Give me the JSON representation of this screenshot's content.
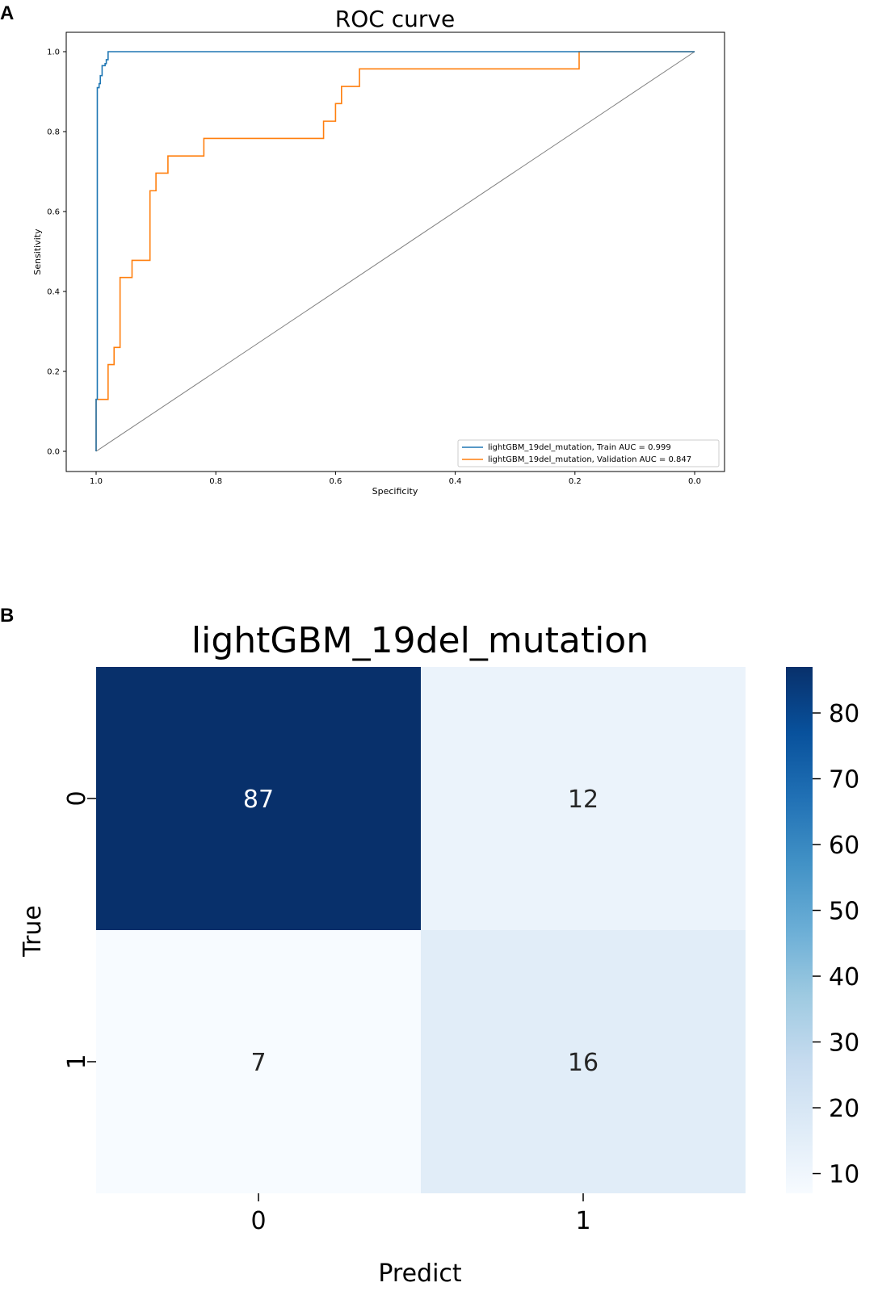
{
  "panels": {
    "a_label": "A",
    "b_label": "B"
  },
  "chart_data": [
    {
      "type": "line",
      "title": "ROC curve",
      "xlabel": "Specificity",
      "ylabel": "Sensitivity",
      "xlim": [
        1.0,
        0.0
      ],
      "ylim": [
        0.0,
        1.0
      ],
      "x_ticks": [
        "1.0",
        "0.8",
        "0.6",
        "0.4",
        "0.2",
        "0.0"
      ],
      "y_ticks": [
        "0.0",
        "0.2",
        "0.4",
        "0.6",
        "0.8",
        "1.0"
      ],
      "grid": false,
      "legend_position": "bottom-right",
      "series": [
        {
          "name": "lightGBM_19del_mutation, Train AUC = 0.999",
          "color": "#1f77b4",
          "points": [
            [
              1.0,
              0.0
            ],
            [
              1.0,
              0.13
            ],
            [
              0.998,
              0.13
            ],
            [
              0.998,
              0.91
            ],
            [
              0.995,
              0.91
            ],
            [
              0.995,
              0.92
            ],
            [
              0.993,
              0.92
            ],
            [
              0.993,
              0.94
            ],
            [
              0.99,
              0.94
            ],
            [
              0.99,
              0.965
            ],
            [
              0.985,
              0.965
            ],
            [
              0.985,
              0.97
            ],
            [
              0.983,
              0.97
            ],
            [
              0.983,
              0.98
            ],
            [
              0.98,
              0.98
            ],
            [
              0.98,
              0.99
            ],
            [
              0.98,
              1.0
            ],
            [
              0.2,
              1.0
            ],
            [
              0.0,
              1.0
            ]
          ]
        },
        {
          "name": "lightGBM_19del_mutation, Validation AUC = 0.847",
          "color": "#ff7f0e",
          "points": [
            [
              1.0,
              0.0
            ],
            [
              1.0,
              0.13
            ],
            [
              0.98,
              0.13
            ],
            [
              0.98,
              0.217
            ],
            [
              0.97,
              0.217
            ],
            [
              0.97,
              0.26
            ],
            [
              0.96,
              0.26
            ],
            [
              0.96,
              0.435
            ],
            [
              0.94,
              0.435
            ],
            [
              0.94,
              0.478
            ],
            [
              0.91,
              0.478
            ],
            [
              0.91,
              0.652
            ],
            [
              0.9,
              0.652
            ],
            [
              0.9,
              0.696
            ],
            [
              0.88,
              0.696
            ],
            [
              0.88,
              0.739
            ],
            [
              0.82,
              0.739
            ],
            [
              0.82,
              0.783
            ],
            [
              0.62,
              0.783
            ],
            [
              0.62,
              0.826
            ],
            [
              0.6,
              0.826
            ],
            [
              0.6,
              0.87
            ],
            [
              0.59,
              0.87
            ],
            [
              0.59,
              0.913
            ],
            [
              0.56,
              0.913
            ],
            [
              0.56,
              0.957
            ],
            [
              0.193,
              0.957
            ],
            [
              0.193,
              1.0
            ],
            [
              0.0,
              1.0
            ]
          ]
        },
        {
          "name": "",
          "color": "#7f7f7f",
          "points": [
            [
              1.0,
              0.0
            ],
            [
              0.0,
              1.0
            ]
          ]
        }
      ]
    },
    {
      "type": "heatmap",
      "title": "lightGBM_19del_mutation",
      "xlabel": "Predict",
      "ylabel": "True",
      "x_categories": [
        "0",
        "1"
      ],
      "y_categories": [
        "0",
        "1"
      ],
      "values": [
        [
          87,
          12
        ],
        [
          7,
          16
        ]
      ],
      "colormap": "Blues",
      "colorbar_ticks": [
        "10",
        "20",
        "30",
        "40",
        "50",
        "60",
        "70",
        "80"
      ],
      "colorbar_range": [
        7,
        87
      ]
    }
  ]
}
